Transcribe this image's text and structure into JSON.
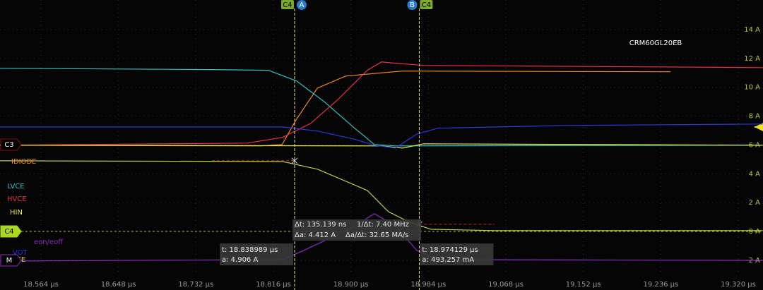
{
  "chart_data": {
    "type": "line",
    "title": "CRM60GL20EB",
    "xlim": [
      18.5196,
      19.3468
    ],
    "ylim": [
      -3.04,
      16.06
    ],
    "grid": true,
    "xticks": [
      {
        "value": 18.564,
        "label": "18.564 µs"
      },
      {
        "value": 18.648,
        "label": "18.648 µs"
      },
      {
        "value": 18.732,
        "label": "18.732 µs"
      },
      {
        "value": 18.816,
        "label": "18.816 µs"
      },
      {
        "value": 18.9,
        "label": "18.900 µs"
      },
      {
        "value": 18.984,
        "label": "18.984 µs"
      },
      {
        "value": 19.068,
        "label": "19.068 µs"
      },
      {
        "value": 19.152,
        "label": "19.152 µs"
      },
      {
        "value": 19.236,
        "label": "19.236 µs"
      },
      {
        "value": 19.32,
        "label": "19.320 µs"
      }
    ],
    "yticks": [
      {
        "value": 14,
        "label": "14 A"
      },
      {
        "value": 12,
        "label": "12 A"
      },
      {
        "value": 10,
        "label": "10 A"
      },
      {
        "value": 8,
        "label": "8 A"
      },
      {
        "value": 6,
        "label": "6 A"
      },
      {
        "value": 4,
        "label": "4 A"
      },
      {
        "value": 2,
        "label": "2 A"
      },
      {
        "value": 0,
        "label": "0 A"
      },
      {
        "value": -2,
        "label": "-2 A"
      }
    ],
    "series": [
      {
        "name": "IDIODE",
        "color": "#f08a1e",
        "x": [
          18.5196,
          18.8025,
          18.8254,
          18.8407,
          18.8637,
          18.8943,
          18.9556,
          19.2466
        ],
        "values": [
          5.98,
          5.93,
          6.03,
          7.75,
          9.95,
          10.78,
          11.13,
          11.08
        ]
      },
      {
        "name": "LVCE",
        "color": "#2ec4c4",
        "x": [
          18.5196,
          18.7493,
          18.8106,
          18.8412,
          18.8718,
          18.9025,
          18.9254,
          18.9484,
          19.3466
        ],
        "values": [
          11.32,
          11.23,
          11.18,
          10.44,
          8.97,
          7.25,
          6.03,
          5.93,
          5.98
        ]
      },
      {
        "name": "HVCE",
        "color": "#e8304a",
        "x": [
          18.5196,
          18.7876,
          18.8259,
          18.8565,
          18.8871,
          18.9178,
          18.9331,
          18.9484,
          18.979,
          19.3466
        ],
        "values": [
          5.98,
          6.13,
          6.52,
          7.5,
          9.22,
          11.18,
          11.76,
          11.67,
          11.52,
          11.37
        ]
      },
      {
        "name": "HIN",
        "color": "#e8e84a",
        "x": [
          18.5196,
          18.9331,
          18.9561,
          18.979,
          19.3466
        ],
        "values": [
          5.98,
          5.93,
          5.78,
          6.08,
          5.98
        ]
      },
      {
        "name": "eon/eoff",
        "color": "#8a2fc0",
        "x": [
          18.5196,
          18.8259,
          18.8489,
          18.9025,
          18.9254,
          18.9484,
          18.9714,
          18.9943,
          19.3466
        ],
        "values": [
          -2.06,
          -1.96,
          -1.32,
          0.29,
          1.23,
          0.39,
          -1.32,
          -1.96,
          -2.01
        ]
      },
      {
        "name": "VOT",
        "color": "#2b3bd6",
        "x": [
          18.5196,
          18.8259,
          18.8642,
          18.9025,
          18.9254,
          18.9484,
          18.9714,
          18.9943,
          19.1322,
          19.3466
        ],
        "values": [
          7.25,
          7.25,
          6.96,
          6.42,
          5.98,
          5.78,
          6.76,
          7.16,
          7.35,
          7.45
        ]
      },
      {
        "name": "VCE",
        "color": "#b8d23a",
        "x": [
          18.5196,
          18.8259,
          18.8642,
          18.9178,
          18.9407,
          18.9637,
          18.9867,
          19.0556,
          19.3466
        ],
        "values": [
          4.9,
          4.85,
          4.31,
          2.84,
          1.37,
          0.64,
          0.15,
          0.05,
          0.05
        ]
      }
    ],
    "channels": [
      "C3",
      "C4",
      "M"
    ],
    "cursors": [
      {
        "channel": "C4",
        "label": "A",
        "t": 18.838989,
        "a": 4.906,
        "t_label": "t: 18.838989 µs",
        "a_label": "a: 4.906 A"
      },
      {
        "channel": "C4",
        "label": "B",
        "t": 18.974129,
        "a": 0.493257,
        "t_label": "t: 18.974129 µs",
        "a_label": "a: 493.257 mA"
      }
    ],
    "delta": [
      "Δt: 135.139 ns",
      "1/Δt: 7.40 MHz",
      "Δa: 4.412 A",
      "Δa/Δt: 32.65 MA/s"
    ]
  }
}
